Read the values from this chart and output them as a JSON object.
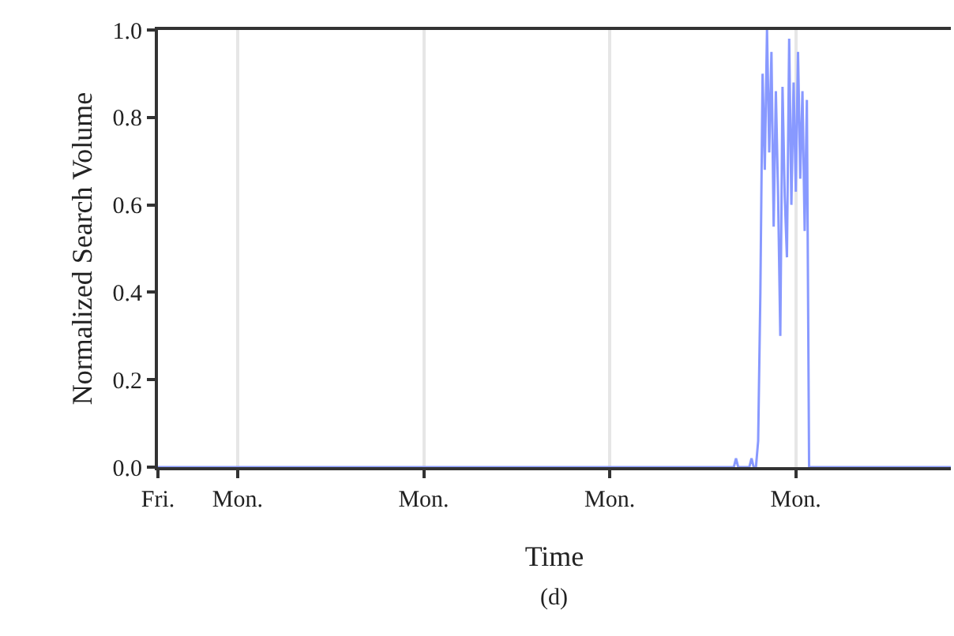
{
  "chart_data": {
    "type": "line",
    "xlabel": "Time",
    "ylabel": "Normalized Search Volume",
    "annotations": [
      "(d)"
    ],
    "categories": [
      "Fri.",
      null,
      null,
      null,
      null,
      null,
      null,
      null,
      null,
      null,
      null,
      null,
      null,
      null,
      null,
      null,
      null,
      null,
      null,
      null,
      null,
      null,
      null,
      null,
      null,
      null,
      null,
      null,
      null,
      null,
      null,
      null,
      null,
      null,
      null,
      null,
      "Mon.",
      null,
      null,
      null,
      null,
      null,
      null,
      null,
      null,
      null,
      null,
      null,
      null,
      null,
      null,
      null,
      null,
      null,
      null,
      null,
      null,
      null,
      null,
      null,
      null,
      null,
      null,
      null,
      null,
      null,
      null,
      null,
      null,
      null,
      null,
      null,
      null,
      null,
      null,
      null,
      null,
      null,
      null,
      null,
      null,
      null,
      null,
      null,
      null,
      null,
      null,
      null,
      null,
      null,
      null,
      null,
      null,
      null,
      null,
      null,
      null,
      null,
      null,
      null,
      null,
      null,
      null,
      null,
      null,
      null,
      null,
      null,
      null,
      null,
      null,
      null,
      null,
      null,
      null,
      null,
      null,
      null,
      null,
      null,
      "Mon.",
      null,
      null,
      null,
      null,
      null,
      null,
      null,
      null,
      null,
      null,
      null,
      null,
      null,
      null,
      null,
      null,
      null,
      null,
      null,
      null,
      null,
      null,
      null,
      null,
      null,
      null,
      null,
      null,
      null,
      null,
      null,
      null,
      null,
      null,
      null,
      null,
      null,
      null,
      null,
      null,
      null,
      null,
      null,
      null,
      null,
      null,
      null,
      null,
      null,
      null,
      null,
      null,
      null,
      null,
      null,
      null,
      null,
      null,
      null,
      null,
      null,
      null,
      null,
      null,
      null,
      null,
      null,
      null,
      null,
      null,
      null,
      null,
      null,
      null,
      null,
      null,
      null,
      null,
      null,
      null,
      null,
      null,
      null,
      "Mon.",
      null,
      null,
      null,
      null,
      null,
      null,
      null,
      null,
      null,
      null,
      null,
      null,
      null,
      null,
      null,
      null,
      null,
      null,
      null,
      null,
      null,
      null,
      null,
      null,
      null,
      null,
      null,
      null,
      null,
      null,
      null,
      null,
      null,
      null,
      null,
      null,
      null,
      null,
      null,
      null,
      null,
      null,
      null,
      null,
      null,
      null,
      null,
      null,
      null,
      null,
      null,
      null,
      null,
      null,
      null,
      null,
      null,
      null,
      null,
      null,
      null,
      null,
      null,
      null,
      null,
      null,
      null,
      null,
      null,
      null,
      null,
      null,
      null,
      null,
      null,
      null,
      null,
      null,
      null,
      null,
      null,
      null,
      null,
      "Mon.",
      null,
      null,
      null,
      null,
      null,
      null,
      null,
      null,
      null,
      null,
      null,
      null,
      null,
      null,
      null,
      null,
      null,
      null,
      null,
      null,
      null,
      null,
      null,
      null,
      null,
      null,
      null,
      null,
      null,
      null,
      null,
      null,
      null,
      null,
      null,
      null,
      null,
      null,
      null,
      null,
      null,
      null,
      null,
      null,
      null,
      null,
      null,
      null,
      null,
      null,
      null,
      null,
      null,
      null,
      null,
      null,
      null,
      null,
      null,
      null,
      null,
      null,
      null,
      null,
      null,
      null,
      null,
      null,
      null,
      null
    ],
    "ylim": [
      0,
      1
    ],
    "yticks": [
      {
        "value": 0,
        "label": "0.0"
      },
      {
        "value": 0.2,
        "label": "0.2"
      },
      {
        "value": 0.4,
        "label": "0.4"
      },
      {
        "value": 0.6,
        "label": "0.6"
      },
      {
        "value": 0.8,
        "label": "0.8"
      },
      {
        "value": 1,
        "label": "1.0"
      }
    ],
    "grid": "x",
    "marker": "none",
    "line_style": "solid",
    "series": [
      {
        "color": "#8899ff",
        "values": [
          0,
          0,
          0,
          0,
          0,
          0,
          0,
          0,
          0,
          0,
          0,
          0,
          0,
          0,
          0,
          0,
          0,
          0,
          0,
          0,
          0,
          0,
          0,
          0,
          0,
          0,
          0,
          0,
          0,
          0,
          0,
          0,
          0,
          0,
          0,
          0,
          0,
          0,
          0,
          0,
          0,
          0,
          0,
          0,
          0,
          0,
          0,
          0,
          0,
          0,
          0,
          0,
          0,
          0,
          0,
          0,
          0,
          0,
          0,
          0,
          0,
          0,
          0,
          0,
          0,
          0,
          0,
          0,
          0,
          0,
          0,
          0,
          0,
          0,
          0,
          0,
          0,
          0,
          0,
          0,
          0,
          0,
          0,
          0,
          0,
          0,
          0,
          0,
          0,
          0,
          0,
          0,
          0,
          0,
          0,
          0,
          0,
          0,
          0,
          0,
          0,
          0,
          0,
          0,
          0,
          0,
          0,
          0,
          0,
          0,
          0,
          0,
          0,
          0,
          0,
          0,
          0,
          0,
          0,
          0,
          0,
          0,
          0,
          0,
          0,
          0,
          0,
          0,
          0,
          0,
          0,
          0,
          0,
          0,
          0,
          0,
          0,
          0,
          0,
          0,
          0,
          0,
          0,
          0,
          0,
          0,
          0,
          0,
          0,
          0,
          0,
          0,
          0,
          0,
          0,
          0,
          0,
          0,
          0,
          0,
          0,
          0,
          0,
          0,
          0,
          0,
          0,
          0,
          0,
          0,
          0,
          0,
          0,
          0,
          0,
          0,
          0,
          0,
          0,
          0,
          0,
          0,
          0,
          0,
          0,
          0,
          0,
          0,
          0,
          0,
          0,
          0,
          0,
          0,
          0,
          0,
          0,
          0,
          0,
          0,
          0,
          0,
          0,
          0,
          0,
          0,
          0,
          0,
          0,
          0,
          0,
          0,
          0,
          0,
          0,
          0,
          0,
          0,
          0,
          0,
          0,
          0,
          0,
          0,
          0,
          0,
          0,
          0,
          0,
          0,
          0,
          0,
          0,
          0,
          0,
          0,
          0,
          0,
          0,
          0,
          0,
          0,
          0,
          0,
          0,
          0,
          0,
          0,
          0,
          0,
          0,
          0,
          0,
          0,
          0,
          0,
          0,
          0,
          0,
          0,
          0,
          0.02,
          0,
          0,
          0,
          0,
          0,
          0,
          0.02,
          0,
          0,
          0.06,
          0.4,
          0.9,
          0.68,
          1.0,
          0.72,
          0.95,
          0.55,
          0.86,
          0.62,
          0.3,
          0.87,
          0.62,
          0.48,
          0.98,
          0.6,
          0.88,
          0.63,
          0.95,
          0.66,
          0.86,
          0.54,
          0.84,
          0,
          0,
          0,
          0,
          0,
          0,
          0,
          0,
          0,
          0,
          0,
          0,
          0,
          0,
          0,
          0,
          0,
          0,
          0,
          0,
          0,
          0,
          0,
          0,
          0,
          0,
          0,
          0,
          0,
          0,
          0,
          0,
          0,
          0,
          0,
          0,
          0,
          0,
          0,
          0,
          0,
          0,
          0,
          0,
          0,
          0,
          0,
          0,
          0,
          0,
          0,
          0,
          0,
          0,
          0,
          0,
          0,
          0,
          0,
          0,
          0,
          0,
          0,
          0,
          0
        ]
      }
    ]
  }
}
